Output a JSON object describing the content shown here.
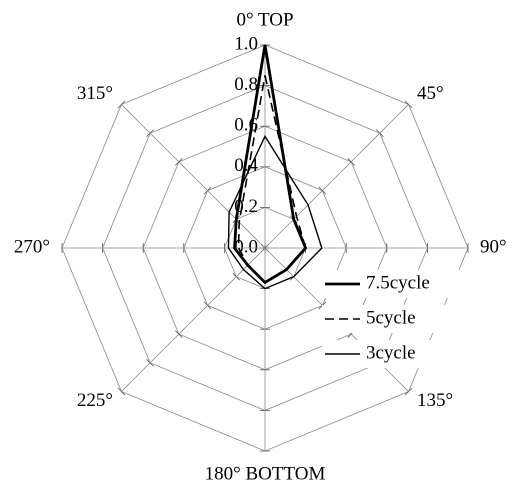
{
  "chart_data": {
    "type": "radar",
    "categories": [
      "0° TOP",
      "45°",
      "90°",
      "135°",
      "180° BOTTOM",
      "225°",
      "270°",
      "315°"
    ],
    "series": [
      {
        "name": "7.5cycle",
        "color": "#000000",
        "style": "solid-thick",
        "values": [
          1.0,
          0.2,
          0.2,
          0.15,
          0.17,
          0.12,
          0.15,
          0.2
        ]
      },
      {
        "name": "5cycle",
        "color": "#000000",
        "style": "dashed",
        "values": [
          0.85,
          0.22,
          0.2,
          0.15,
          0.17,
          0.12,
          0.13,
          0.18
        ]
      },
      {
        "name": "3cycle",
        "color": "#000000",
        "style": "solid",
        "values": [
          0.55,
          0.3,
          0.28,
          0.2,
          0.2,
          0.15,
          0.18,
          0.25
        ]
      }
    ],
    "rlim": [
      0,
      1
    ],
    "rticks": [
      {
        "value": 0,
        "label": "0.0"
      },
      0.2,
      0.4,
      0.6,
      0.8,
      {
        "value": 1,
        "label": "1.0"
      }
    ],
    "grid": true,
    "legend": "lower right"
  }
}
